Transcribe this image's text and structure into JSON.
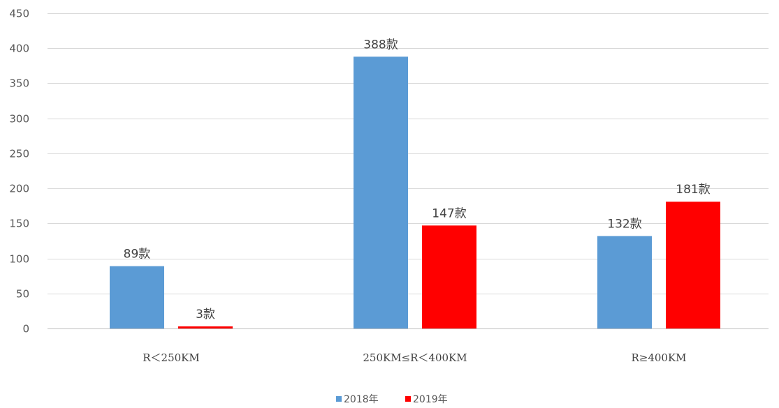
{
  "chart_data": {
    "type": "bar",
    "title": "",
    "xlabel": "",
    "ylabel": "",
    "categories": [
      "R＜250KM",
      "250KM≤R＜400KM",
      "R≥400KM"
    ],
    "series": [
      {
        "name": "2018年",
        "color": "#5b9bd5",
        "values": [
          89,
          388,
          132
        ],
        "labels": [
          "89款",
          "388款",
          "132款"
        ]
      },
      {
        "name": "2019年",
        "color": "#ff0000",
        "values": [
          3,
          147,
          181
        ],
        "labels": [
          "3款",
          "147款",
          "181款"
        ]
      }
    ],
    "ylim": [
      0,
      450
    ],
    "yticks": [
      0,
      50,
      100,
      150,
      200,
      250,
      300,
      350,
      400,
      450
    ],
    "ytick_labels": [
      "0",
      "50",
      "100",
      "150",
      "200",
      "250",
      "300",
      "350",
      "400",
      "450"
    ],
    "grid": true,
    "legend_position": "bottom"
  }
}
